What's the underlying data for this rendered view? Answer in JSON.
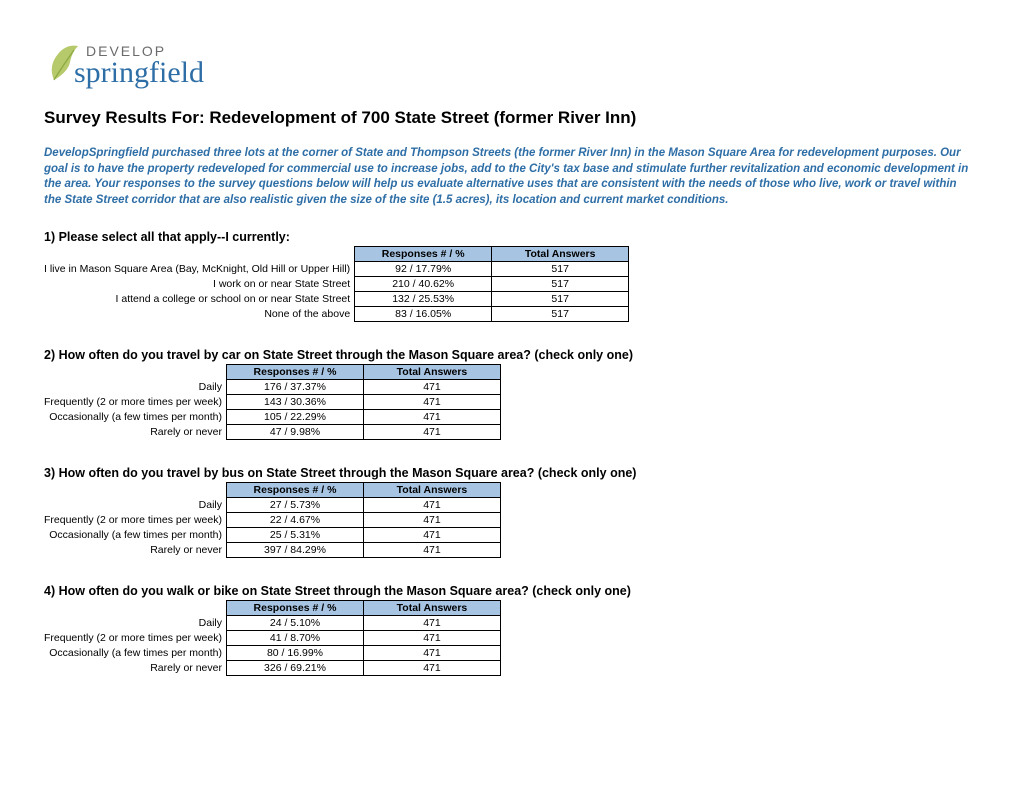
{
  "logo": {
    "top_word": "DEVELOP",
    "bottom_word": "springfield",
    "leaf_color": "#b6c96b",
    "top_color": "#6b6b6b",
    "bottom_color": "#2e6ea6"
  },
  "title": "Survey Results For: Redevelopment of 700 State Street (former River Inn)",
  "intro": "DevelopSpringfield purchased three lots at the corner of State and Thompson Streets (the former River Inn) in the Mason Square Area for redevelopment purposes. Our goal is to have the property redeveloped  for commercial use to increase jobs, add to the City's tax base and stimulate further revitalization and economic development in the area. Your responses to the survey questions below will help us evaluate alternative uses that are consistent with the needs of those who live, work or travel within the State Street corridor that are also realistic given the size of the site (1.5 acres), its location and current market conditions.",
  "columns": {
    "responses": "Responses # / %",
    "total": "Total Answers"
  },
  "questions": [
    {
      "text": "1)  Please select all that apply--I currently:",
      "rows": [
        {
          "label": "I live in Mason Square Area (Bay, McKnight, Old Hill or Upper Hill)",
          "responses": "92 / 17.79%",
          "total": "517"
        },
        {
          "label": "I work on or near State Street",
          "responses": "210 / 40.62%",
          "total": "517"
        },
        {
          "label": "I attend a college or school on or near State Street",
          "responses": "132 / 25.53%",
          "total": "517"
        },
        {
          "label": "None of the above",
          "responses": "83 / 16.05%",
          "total": "517"
        }
      ]
    },
    {
      "text": "2) How often do you travel by car on State Street through the Mason Square area? (check only one)",
      "rows": [
        {
          "label": "Daily",
          "responses": "176 / 37.37%",
          "total": "471"
        },
        {
          "label": "Frequently (2 or more times per week)",
          "responses": "143 / 30.36%",
          "total": "471"
        },
        {
          "label": "Occasionally (a few times per month)",
          "responses": "105 / 22.29%",
          "total": "471"
        },
        {
          "label": "Rarely or never",
          "responses": "47 / 9.98%",
          "total": "471"
        }
      ]
    },
    {
      "text": "3) How often do you travel by bus on State Street through the Mason Square area? (check only one)",
      "rows": [
        {
          "label": "Daily",
          "responses": "27 / 5.73%",
          "total": "471"
        },
        {
          "label": "Frequently (2 or more times per week)",
          "responses": "22 / 4.67%",
          "total": "471"
        },
        {
          "label": "Occasionally (a few times per month)",
          "responses": "25 / 5.31%",
          "total": "471"
        },
        {
          "label": "Rarely or never",
          "responses": "397 / 84.29%",
          "total": "471"
        }
      ]
    },
    {
      "text": "4) How often do you walk or bike on State Street through the Mason Square area? (check only one)",
      "rows": [
        {
          "label": "Daily",
          "responses": "24 / 5.10%",
          "total": "471"
        },
        {
          "label": "Frequently (2 or more times per week)",
          "responses": "41 / 8.70%",
          "total": "471"
        },
        {
          "label": "Occasionally (a few times per month)",
          "responses": "80 / 16.99%",
          "total": "471"
        },
        {
          "label": "Rarely or never",
          "responses": "326 / 69.21%",
          "total": "471"
        }
      ]
    }
  ]
}
